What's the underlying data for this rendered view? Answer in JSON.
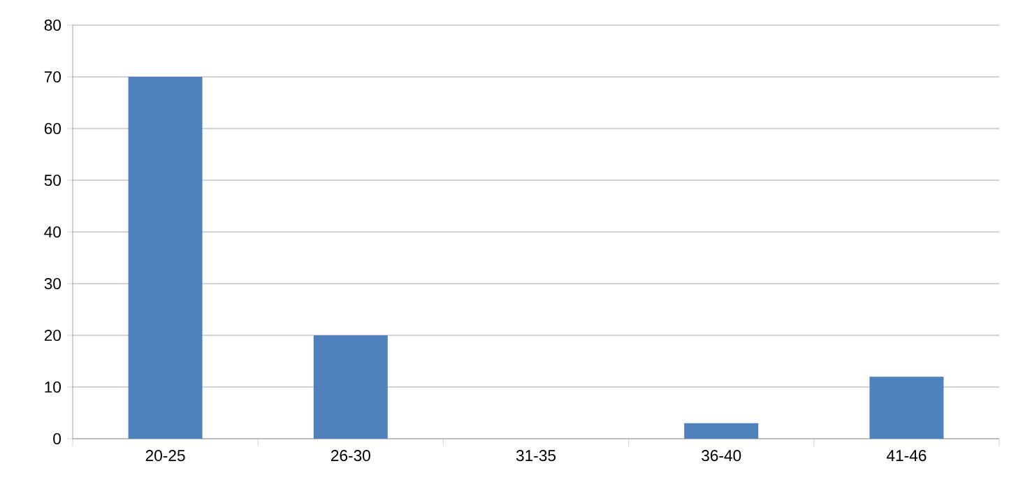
{
  "chart_data": {
    "type": "bar",
    "categories": [
      "20-25",
      "26-30",
      "31-35",
      "36-40",
      "41-46"
    ],
    "values": [
      70,
      20,
      0,
      3,
      12
    ],
    "color": "#4f81bd",
    "ylim": [
      0,
      80
    ],
    "yticks": [
      0,
      10,
      20,
      30,
      40,
      50,
      60,
      70,
      80
    ],
    "grid": "y"
  }
}
